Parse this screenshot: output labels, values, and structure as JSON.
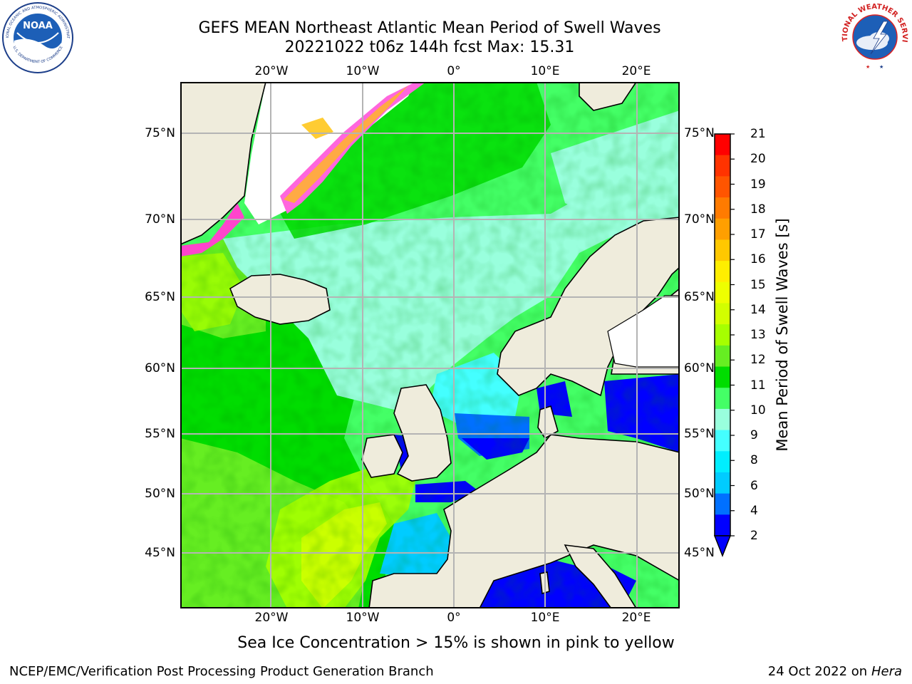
{
  "header": {
    "title_line1": "GEFS MEAN Northeast Atlantic Mean Period of Swell Waves",
    "title_line2": "20221022 t06z 144h fcst   Max: 15.31"
  },
  "logos": {
    "noaa_text": "NOAA",
    "noaa_ring_text": "NATIONAL OCEANIC AND ATMOSPHERIC ADMINISTRATION",
    "noaa_ring_bottom": "U.S. DEPARTMENT OF COMMERCE",
    "nws_ring_text": "NATIONAL WEATHER SERVICE"
  },
  "map": {
    "lon_ticks": [
      "20°W",
      "10°W",
      "0°",
      "10°E",
      "20°E"
    ],
    "lat_ticks": [
      "75°N",
      "70°N",
      "65°N",
      "60°N",
      "55°N",
      "50°N",
      "45°N"
    ],
    "colors": {
      "land": "#efecdc",
      "grid": "#b4b4b4",
      "ice": "#ffffff"
    }
  },
  "colorbar": {
    "label": "Mean Period of Swell Waves [s]",
    "ticks": [
      "21",
      "20",
      "19",
      "18",
      "17",
      "16",
      "15",
      "14",
      "13",
      "12",
      "11",
      "10",
      "9",
      "8",
      "6",
      "4",
      "2"
    ],
    "colors": [
      "#ff0000",
      "#ff3300",
      "#ff5500",
      "#ff7b00",
      "#ff9f00",
      "#ffc800",
      "#ffee00",
      "#eeff00",
      "#d2ff00",
      "#a6ff00",
      "#66ee22",
      "#00dd00",
      "#44ff66",
      "#99ffdd",
      "#44ffff",
      "#00eeff",
      "#00ccff",
      "#0070ff",
      "#0000ff"
    ]
  },
  "caption": "Sea Ice Concentration > 15% is shown in pink to yellow",
  "footer": {
    "left": "NCEP/EMC/Verification Post Processing Product Generation Branch",
    "date": "24 Oct 2022 on ",
    "machine": "Hera"
  }
}
